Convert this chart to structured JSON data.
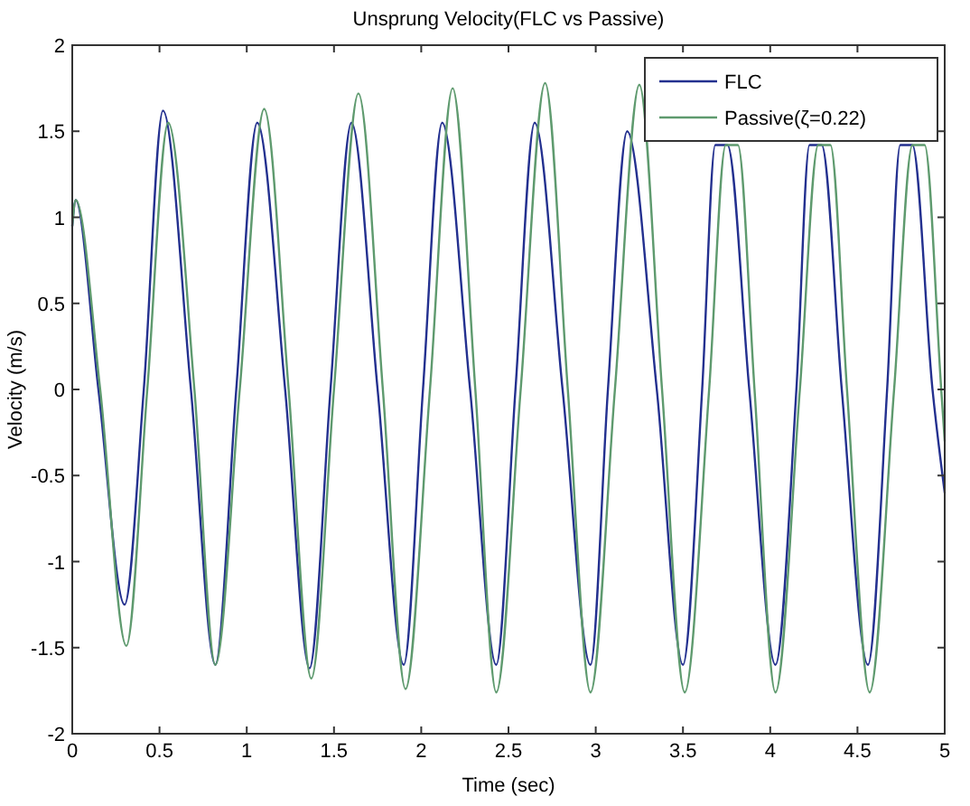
{
  "chart_data": {
    "type": "line",
    "title": "Unsprung Velocity(FLC vs Passive)",
    "xlabel": "Time (sec)",
    "ylabel": "Velocity (m/s)",
    "xlim": [
      0,
      5
    ],
    "ylim": [
      -2,
      2
    ],
    "xticks": [
      0,
      0.5,
      1,
      1.5,
      2,
      2.5,
      3,
      3.5,
      4,
      4.5,
      5
    ],
    "yticks": [
      -2,
      -1.5,
      -1,
      -0.5,
      0,
      0.5,
      1,
      1.5,
      2
    ],
    "grid": false,
    "legend": "top right",
    "series": [
      {
        "name": "FLC",
        "color": "#23308f",
        "x": [
          0,
          0.02,
          0.15,
          0.3,
          0.41,
          0.52,
          0.68,
          0.82,
          0.94,
          1.06,
          1.22,
          1.36,
          1.48,
          1.6,
          1.75,
          1.9,
          2.01,
          2.12,
          2.28,
          2.43,
          2.54,
          2.65,
          2.81,
          2.97,
          3.07,
          3.18,
          3.35,
          3.5,
          3.61,
          3.685,
          3.755,
          3.88,
          4.03,
          4.15,
          4.225,
          4.295,
          4.41,
          4.56,
          4.67,
          4.745,
          4.815,
          4.93,
          5
        ],
        "values": [
          0.95,
          1.1,
          0,
          -1.25,
          0,
          1.62,
          0,
          -1.6,
          0,
          1.55,
          0,
          -1.62,
          0,
          1.55,
          0,
          -1.6,
          0,
          1.55,
          0,
          -1.6,
          0,
          1.55,
          0,
          -1.6,
          0,
          1.5,
          0,
          -1.6,
          0,
          1.42,
          1.42,
          0,
          -1.6,
          0,
          1.42,
          1.42,
          0,
          -1.6,
          0,
          1.42,
          1.42,
          0,
          -0.6
        ]
      },
      {
        "name": "Passive(ζ=0.22)",
        "color": "#5e9a6e",
        "x": [
          0,
          0.02,
          0.16,
          0.31,
          0.43,
          0.55,
          0.7,
          0.82,
          0.96,
          1.1,
          1.24,
          1.37,
          1.5,
          1.64,
          1.78,
          1.91,
          2.05,
          2.18,
          2.31,
          2.43,
          2.57,
          2.71,
          2.84,
          2.97,
          3.11,
          3.25,
          3.38,
          3.51,
          3.65,
          3.745,
          3.815,
          3.91,
          4.03,
          4.17,
          4.275,
          4.345,
          4.44,
          4.57,
          4.71,
          4.815,
          4.885,
          4.98,
          5
        ],
        "values": [
          0.95,
          1.1,
          0,
          -1.49,
          0,
          1.55,
          0,
          -1.6,
          0,
          1.63,
          0,
          -1.68,
          0,
          1.72,
          0,
          -1.74,
          0,
          1.75,
          0,
          -1.76,
          0,
          1.78,
          0,
          -1.76,
          0,
          1.77,
          0,
          -1.76,
          0,
          1.42,
          1.42,
          0,
          -1.76,
          0,
          1.42,
          1.42,
          0,
          -1.76,
          0,
          1.42,
          1.42,
          0,
          -0.3
        ]
      }
    ]
  }
}
